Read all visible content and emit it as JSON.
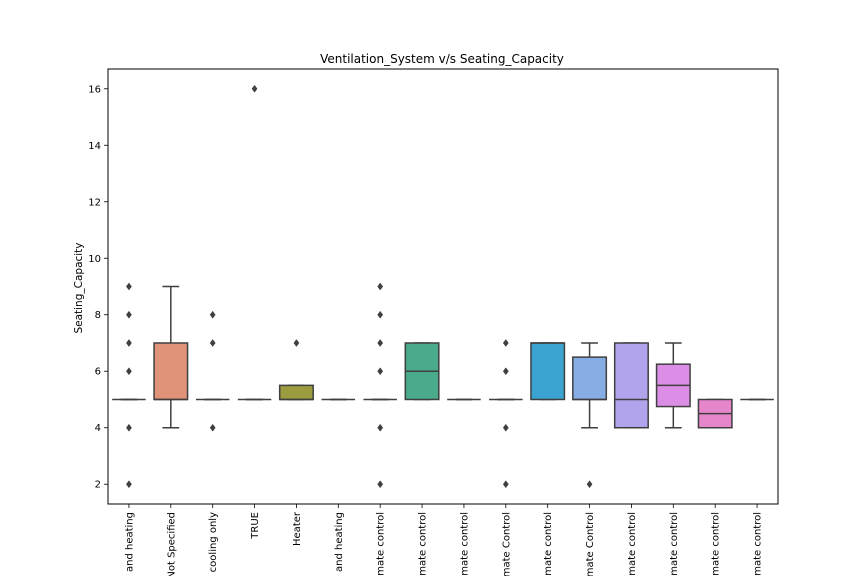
{
  "chart_data": {
    "type": "box",
    "title": "Ventilation_System v/s Seating_Capacity",
    "xlabel": "",
    "ylabel": "Seating_Capacity",
    "ylim": [
      1.3,
      16.7
    ],
    "yticks": [
      2,
      4,
      6,
      8,
      10,
      12,
      14,
      16
    ],
    "grid": false,
    "categories": [
      "and heating",
      "Not Specified",
      "cooling only",
      "TRUE",
      "Heater",
      "and heating",
      "mate control",
      "mate control",
      "mate control",
      "mate Control",
      "mate control",
      "mate Control",
      "mate control",
      "mate control",
      "mate control",
      "mate control"
    ],
    "boxes": [
      {
        "color": "#3274a1",
        "whisker_low": 5,
        "q1": 5,
        "median": 5,
        "q3": 5,
        "whisker_high": 5,
        "outliers": [
          2,
          4,
          6,
          7,
          8,
          9
        ]
      },
      {
        "color": "#e1937a",
        "whisker_low": 4,
        "q1": 5,
        "median": 5,
        "q3": 7,
        "whisker_high": 9,
        "outliers": []
      },
      {
        "color": "#3a923a",
        "whisker_low": 5,
        "q1": 5,
        "median": 5,
        "q3": 5,
        "whisker_high": 5,
        "outliers": [
          4,
          7,
          8
        ]
      },
      {
        "color": "#c03d3e",
        "whisker_low": 5,
        "q1": 5,
        "median": 5,
        "q3": 5,
        "whisker_high": 5,
        "outliers": [
          16
        ]
      },
      {
        "color": "#9a9c3f",
        "whisker_low": 5,
        "q1": 5,
        "median": 5,
        "q3": 5.5,
        "whisker_high": 5.5,
        "outliers": [
          7
        ]
      },
      {
        "color": "#845b53",
        "whisker_low": 5,
        "q1": 5,
        "median": 5,
        "q3": 5,
        "whisker_high": 5,
        "outliers": []
      },
      {
        "color": "#d684bd",
        "whisker_low": 5,
        "q1": 5,
        "median": 5,
        "q3": 5,
        "whisker_high": 5,
        "outliers": [
          2,
          4,
          6,
          7,
          8,
          9
        ]
      },
      {
        "color": "#4aab8c",
        "whisker_low": 5,
        "q1": 5,
        "median": 6,
        "q3": 7,
        "whisker_high": 7,
        "outliers": []
      },
      {
        "color": "#7f7f7f",
        "whisker_low": 5,
        "q1": 5,
        "median": 5,
        "q3": 5,
        "whisker_high": 5,
        "outliers": []
      },
      {
        "color": "#a9aa35",
        "whisker_low": 5,
        "q1": 5,
        "median": 5,
        "q3": 5,
        "whisker_high": 5,
        "outliers": [
          2,
          4,
          6,
          7
        ]
      },
      {
        "color": "#3ba3d0",
        "whisker_low": 5,
        "q1": 5,
        "median": 7,
        "q3": 7,
        "whisker_high": 7,
        "outliers": []
      },
      {
        "color": "#86aee5",
        "whisker_low": 4,
        "q1": 5,
        "median": 5,
        "q3": 6.5,
        "whisker_high": 7,
        "outliers": [
          2
        ]
      },
      {
        "color": "#b1a3ec",
        "whisker_low": 4,
        "q1": 4,
        "median": 5,
        "q3": 7,
        "whisker_high": 7,
        "outliers": []
      },
      {
        "color": "#dc8ee6",
        "whisker_low": 4,
        "q1": 4.75,
        "median": 5.5,
        "q3": 6.25,
        "whisker_high": 7,
        "outliers": []
      },
      {
        "color": "#e586cb",
        "whisker_low": 4,
        "q1": 4,
        "median": 4.5,
        "q3": 5,
        "whisker_high": 5,
        "outliers": []
      },
      {
        "color": "#3274a1",
        "whisker_low": 5,
        "q1": 5,
        "median": 5,
        "q3": 5,
        "whisker_high": 5,
        "outliers": []
      }
    ]
  }
}
